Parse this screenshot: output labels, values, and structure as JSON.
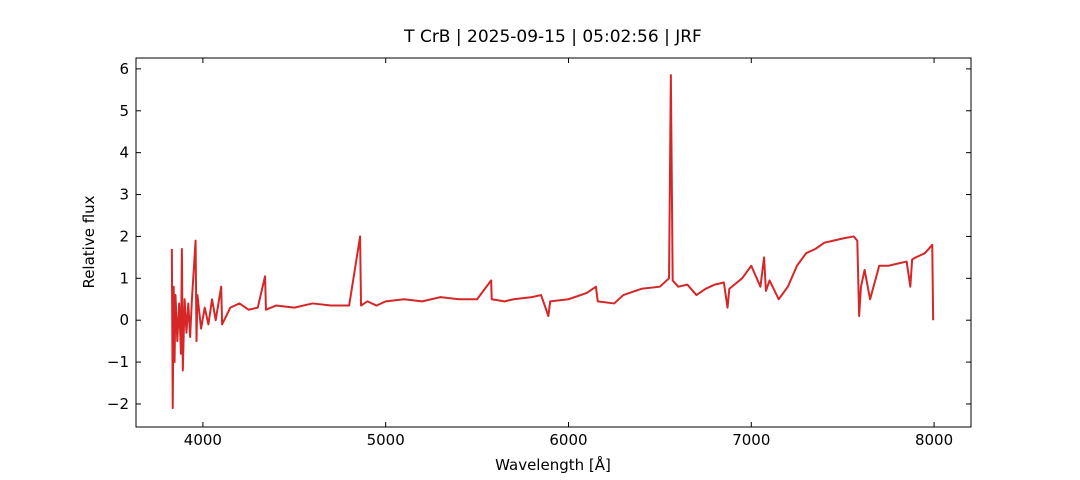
{
  "chart_data": {
    "type": "line",
    "title": "T CrB | 2025-09-15 | 05:02:56 | JRF",
    "xlabel": "Wavelength [Å]",
    "ylabel": "Relative flux",
    "xlim": [
      3634,
      8202
    ],
    "ylim": [
      -2.55,
      6.26
    ],
    "xticks": [
      4000,
      5000,
      6000,
      7000,
      8000
    ],
    "yticks": [
      {
        "value": -2,
        "label": "−2"
      },
      {
        "value": -1,
        "label": "−1"
      },
      0,
      1,
      2,
      3,
      4,
      5,
      6
    ],
    "series": [
      {
        "color": "#d62728",
        "x": [
          3830,
          3835,
          3840,
          3845,
          3850,
          3860,
          3870,
          3880,
          3885,
          3890,
          3900,
          3910,
          3920,
          3930,
          3940,
          3960,
          3965,
          3970,
          3990,
          4010,
          4030,
          4050,
          4070,
          4100,
          4105,
          4150,
          4200,
          4250,
          4300,
          4340,
          4345,
          4400,
          4500,
          4600,
          4700,
          4800,
          4860,
          4865,
          4900,
          4950,
          5000,
          5100,
          5200,
          5300,
          5400,
          5500,
          5577,
          5580,
          5650,
          5700,
          5800,
          5850,
          5890,
          5900,
          6000,
          6100,
          6150,
          6160,
          6250,
          6300,
          6400,
          6500,
          6550,
          6560,
          6570,
          6600,
          6650,
          6700,
          6750,
          6800,
          6850,
          6870,
          6880,
          6950,
          7000,
          7050,
          7070,
          7080,
          7100,
          7150,
          7200,
          7250,
          7300,
          7350,
          7400,
          7450,
          7500,
          7560,
          7580,
          7590,
          7600,
          7620,
          7650,
          7700,
          7750,
          7800,
          7850,
          7870,
          7880,
          7900,
          7950,
          7990,
          7995
        ],
        "values": [
          1.7,
          -2.1,
          0.8,
          -1.0,
          0.6,
          -0.5,
          0.4,
          -0.8,
          1.7,
          -1.2,
          0.5,
          -0.3,
          0.4,
          -0.4,
          0.5,
          1.9,
          -0.5,
          0.6,
          -0.2,
          0.3,
          -0.1,
          0.5,
          0.0,
          0.8,
          -0.1,
          0.3,
          0.4,
          0.25,
          0.3,
          1.05,
          0.25,
          0.35,
          0.3,
          0.4,
          0.35,
          0.35,
          2.0,
          0.35,
          0.45,
          0.35,
          0.45,
          0.5,
          0.45,
          0.55,
          0.5,
          0.5,
          0.95,
          0.5,
          0.45,
          0.5,
          0.55,
          0.6,
          0.1,
          0.45,
          0.5,
          0.65,
          0.8,
          0.45,
          0.4,
          0.6,
          0.75,
          0.8,
          1.0,
          5.85,
          0.95,
          0.8,
          0.85,
          0.6,
          0.75,
          0.85,
          0.9,
          0.3,
          0.75,
          1.0,
          1.3,
          0.8,
          1.5,
          0.7,
          0.95,
          0.5,
          0.8,
          1.3,
          1.6,
          1.7,
          1.85,
          1.9,
          1.95,
          2.0,
          1.9,
          0.1,
          0.8,
          1.2,
          0.5,
          1.3,
          1.3,
          1.35,
          1.4,
          0.8,
          1.45,
          1.5,
          1.6,
          1.8,
          0.0
        ]
      }
    ]
  }
}
